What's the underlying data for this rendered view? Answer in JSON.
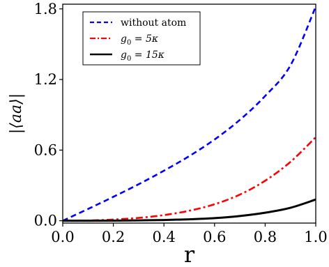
{
  "chart_data": {
    "type": "line",
    "xlabel": "r",
    "ylabel": "|⟨aa⟩|",
    "xlim": [
      0.0,
      1.0
    ],
    "ylim": [
      -0.02,
      1.84
    ],
    "xticks": [
      0.0,
      0.2,
      0.4,
      0.6,
      0.8,
      1.0
    ],
    "xtick_labels": [
      "0.0",
      "0.2",
      "0.4",
      "0.6",
      "0.8",
      "1.0"
    ],
    "yticks": [
      0.0,
      0.6,
      1.2,
      1.8
    ],
    "ytick_labels": [
      "0.0",
      "0.6",
      "1.2",
      "1.8"
    ],
    "grid": false,
    "legend_position": "top-left",
    "x": [
      0.0,
      0.1,
      0.2,
      0.3,
      0.4,
      0.5,
      0.6,
      0.7,
      0.8,
      0.9,
      1.0
    ],
    "series": [
      {
        "name": "without atom",
        "style": "dashed",
        "color": "#0000ff",
        "values": [
          0.0,
          0.1,
          0.203,
          0.31,
          0.425,
          0.549,
          0.69,
          0.857,
          1.06,
          1.32,
          1.82
        ]
      },
      {
        "name": "g0 = 5κ",
        "legend_math": {
          "symbol": "g",
          "sub": "0",
          "rest": " = 5κ"
        },
        "style": "dashdot",
        "color": "#ff0000",
        "values": [
          0.0,
          0.002,
          0.01,
          0.024,
          0.048,
          0.085,
          0.14,
          0.222,
          0.34,
          0.5,
          0.71
        ]
      },
      {
        "name": "g0 = 15κ",
        "legend_math": {
          "symbol": "g",
          "sub": "0",
          "rest": " = 15κ"
        },
        "style": "solid",
        "color": "#000000",
        "values": [
          0.0,
          0.0002,
          0.001,
          0.003,
          0.006,
          0.012,
          0.022,
          0.04,
          0.068,
          0.11,
          0.18
        ]
      }
    ]
  }
}
